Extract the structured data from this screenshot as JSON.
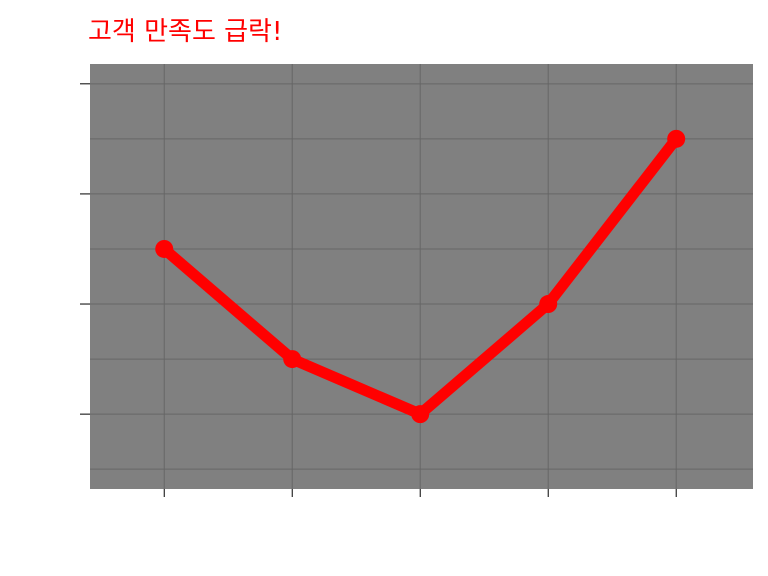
{
  "chart_data": {
    "type": "line",
    "title": "고객 만족도 급락!",
    "xlabel": "",
    "ylabel": "",
    "x": [
      1,
      2,
      3,
      4,
      5
    ],
    "series": [
      {
        "values": [
          4.5,
          3.5,
          3.0,
          4.0,
          5.5
        ]
      }
    ],
    "xlim": [
      0.42,
      5.6
    ],
    "ylim": [
      2.32,
      6.18
    ],
    "x_ticks": [
      1,
      2,
      3,
      4,
      5
    ],
    "y_ticks": [
      3,
      4,
      5,
      6
    ],
    "show_tick_labels": false,
    "grid": true,
    "legend": "none",
    "colors": {
      "title": "#ff0000",
      "line": "#ff0000",
      "plot_background": "#808080",
      "grid": "#666666",
      "ticks": "#000000"
    }
  }
}
